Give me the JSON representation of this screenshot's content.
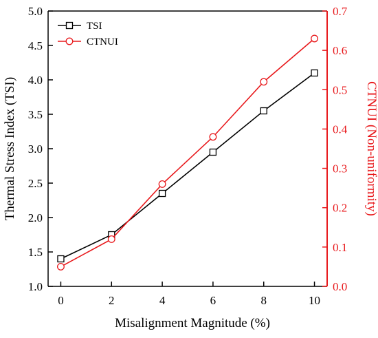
{
  "chart_data": {
    "type": "line",
    "xlabel": "Misalignment Magnitude (%)",
    "x": [
      0,
      2,
      4,
      6,
      8,
      10
    ],
    "xlim": [
      -0.5,
      10.5
    ],
    "xticks": [
      "0",
      "2",
      "4",
      "6",
      "8",
      "10"
    ],
    "left_axis": {
      "label": "Thermal Stress Index (TSI)",
      "ylim": [
        1.0,
        5.0
      ],
      "ticks": [
        "1.0",
        "1.5",
        "2.0",
        "2.5",
        "3.0",
        "3.5",
        "4.0",
        "4.5",
        "5.0"
      ],
      "color": "#000000"
    },
    "right_axis": {
      "label": "CTNUI (Non-uniformity)",
      "ylim": [
        0.0,
        0.7
      ],
      "ticks": [
        "0.0",
        "0.1",
        "0.2",
        "0.3",
        "0.4",
        "0.5",
        "0.6",
        "0.7"
      ],
      "color": "#e8191c"
    },
    "series": [
      {
        "name": "TSI",
        "axis": "left",
        "marker": "square",
        "color": "#000000",
        "values": [
          1.4,
          1.75,
          2.35,
          2.95,
          3.55,
          4.1
        ]
      },
      {
        "name": "CTNUI",
        "axis": "right",
        "marker": "circle",
        "color": "#e8191c",
        "values": [
          0.05,
          0.12,
          0.26,
          0.38,
          0.52,
          0.63
        ]
      }
    ],
    "legend_position": "top-left",
    "grid": false
  }
}
